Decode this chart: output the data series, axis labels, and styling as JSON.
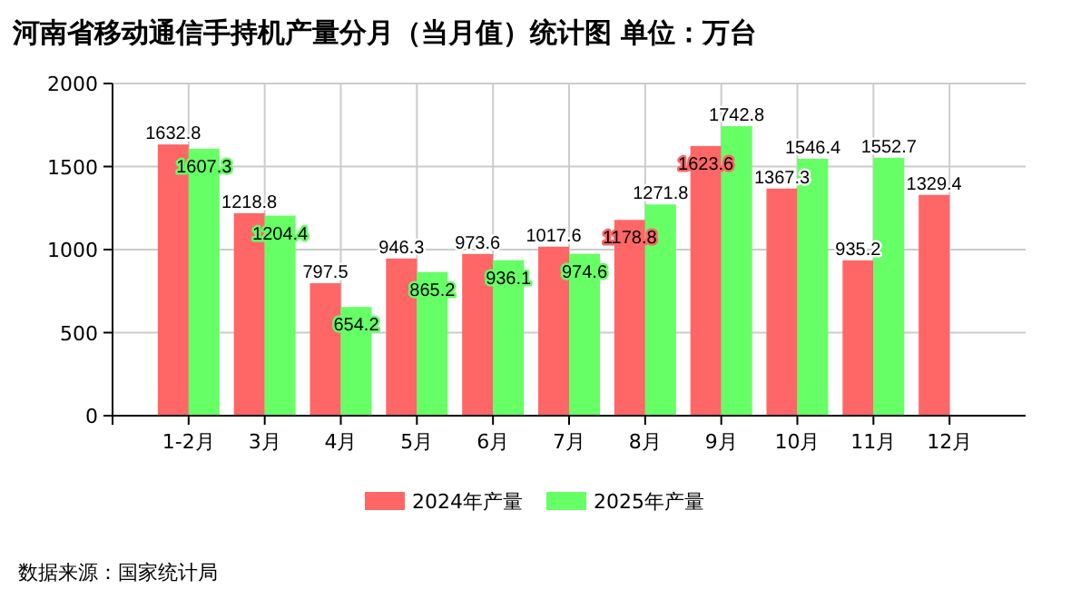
{
  "chart_data": {
    "type": "bar",
    "title": "河南省移动通信手持机产量分月（当月值）统计图 单位：万台",
    "categories": [
      "1-2月",
      "3月",
      "4月",
      "5月",
      "6月",
      "7月",
      "8月",
      "9月",
      "10月",
      "11月",
      "12月"
    ],
    "series": [
      {
        "name": "2024年产量",
        "color": "#ff6666",
        "values": [
          1632.8,
          1218.8,
          797.5,
          946.3,
          973.6,
          1017.6,
          1178.8,
          1623.6,
          1367.3,
          935.2,
          1329.4
        ]
      },
      {
        "name": "2025年产量",
        "color": "#66ff66",
        "values": [
          1607.3,
          1204.4,
          654.2,
          865.2,
          936.1,
          974.6,
          1271.8,
          1742.8,
          1546.4,
          1552.7,
          null
        ]
      }
    ],
    "ylim": [
      0,
      2000
    ],
    "yticks": [
      0,
      500,
      1000,
      1500,
      2000
    ],
    "grid": true,
    "legend": "bottom",
    "data_labels": true,
    "annotations": [
      "数据来源：国家统计局"
    ]
  }
}
